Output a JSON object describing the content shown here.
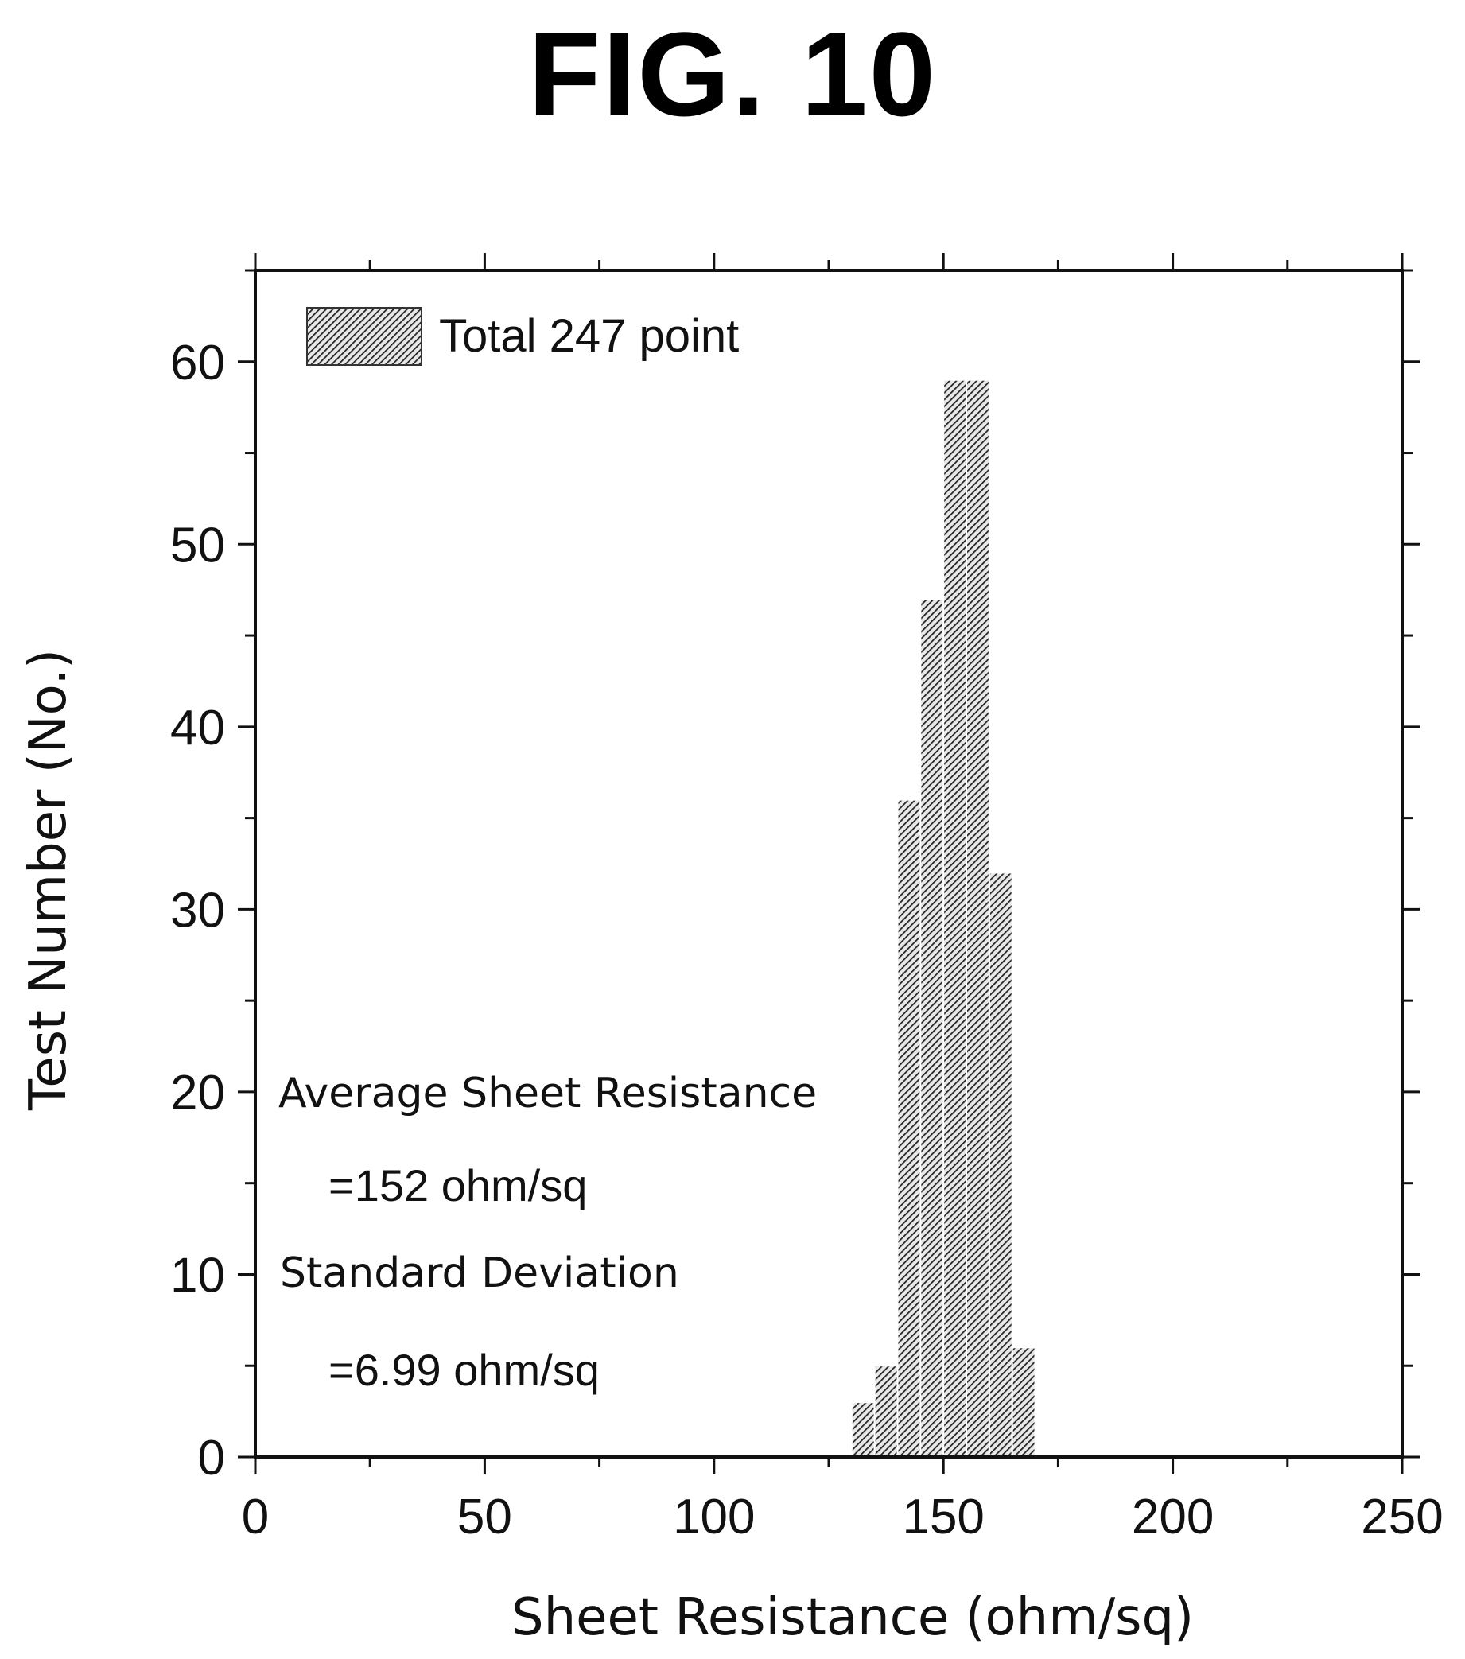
{
  "figure": {
    "title": "FIG. 10"
  },
  "chart_data": {
    "type": "bar",
    "title": "",
    "xlabel": "Sheet Resistance (ohm/sq)",
    "ylabel": "Test Number (No.)",
    "xlim": [
      0,
      250
    ],
    "ylim": [
      0,
      65
    ],
    "xticks": [
      0,
      50,
      100,
      150,
      200,
      250
    ],
    "yticks": [
      0,
      10,
      20,
      30,
      40,
      50,
      60
    ],
    "bin_width": 5,
    "x": [
      130,
      135,
      140,
      145,
      150,
      155,
      160,
      165
    ],
    "values": [
      3,
      5,
      36,
      47,
      59,
      59,
      32,
      6
    ],
    "legend": {
      "label": "Total 247 point",
      "position": "top-left"
    },
    "annotations": [
      "Average Sheet Resistance",
      "=152 ohm/sq",
      "Standard Deviation",
      "=6.99 ohm/sq"
    ],
    "grid": false,
    "bar_fill": "hatched"
  }
}
